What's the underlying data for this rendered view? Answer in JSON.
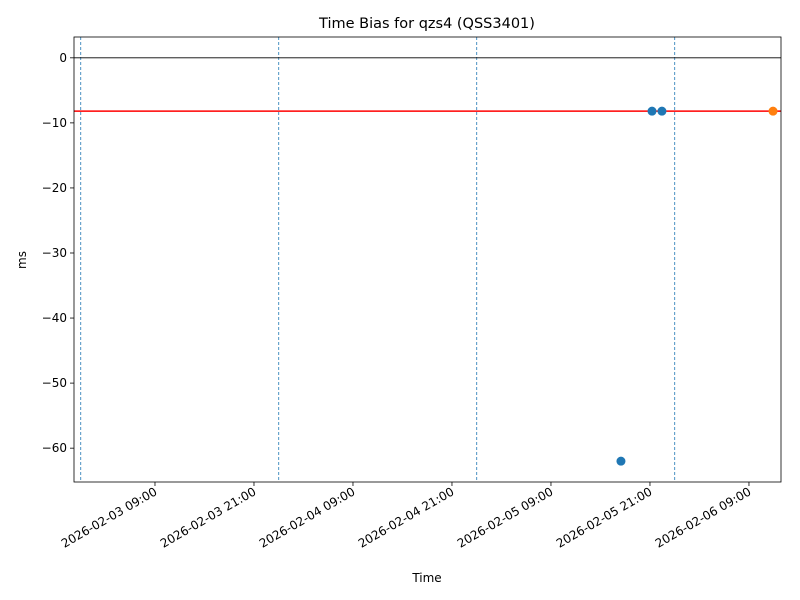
{
  "chart_data": {
    "type": "scatter",
    "title": "Time Bias for qzs4 (QSS3401)",
    "x_label": "Time",
    "y_label": "ms",
    "xlim": [
      "2026-02-02 23:11",
      "2026-02-06 12:53"
    ],
    "xticks": [
      "2026-02-03 09:00",
      "2026-02-03 21:00",
      "2026-02-04 09:00",
      "2026-02-04 21:00",
      "2026-02-05 09:00",
      "2026-02-05 21:00",
      "2026-02-06 09:00"
    ],
    "ylim": [
      -65.2,
      3.2
    ],
    "yticks": [
      {
        "value": -60,
        "label": "−60"
      },
      {
        "value": -50,
        "label": "−50"
      },
      {
        "value": -40,
        "label": "−40"
      },
      {
        "value": -30,
        "label": "−30"
      },
      {
        "value": -20,
        "label": "−20"
      },
      {
        "value": -10,
        "label": "−10"
      },
      0
    ],
    "series": [
      {
        "color": "#1f77b4",
        "x": [
          "2026-02-05 17:29",
          "2026-02-05 21:15",
          "2026-02-05 22:27"
        ],
        "values": [
          -62,
          -8.2,
          -8.2
        ]
      },
      {
        "color": "#ff7f0e",
        "x": [
          "2026-02-06 11:55"
        ],
        "values": [
          -8.2
        ]
      }
    ],
    "hlines": [
      {
        "value": 0,
        "color": "#000000"
      },
      {
        "value": -8.2,
        "color": "#ff0000"
      }
    ],
    "vlines": {
      "color": "#1f77b4",
      "x": [
        "2026-02-03 00:00",
        "2026-02-04 00:00",
        "2026-02-05 00:00",
        "2026-02-06 00:00"
      ]
    }
  }
}
